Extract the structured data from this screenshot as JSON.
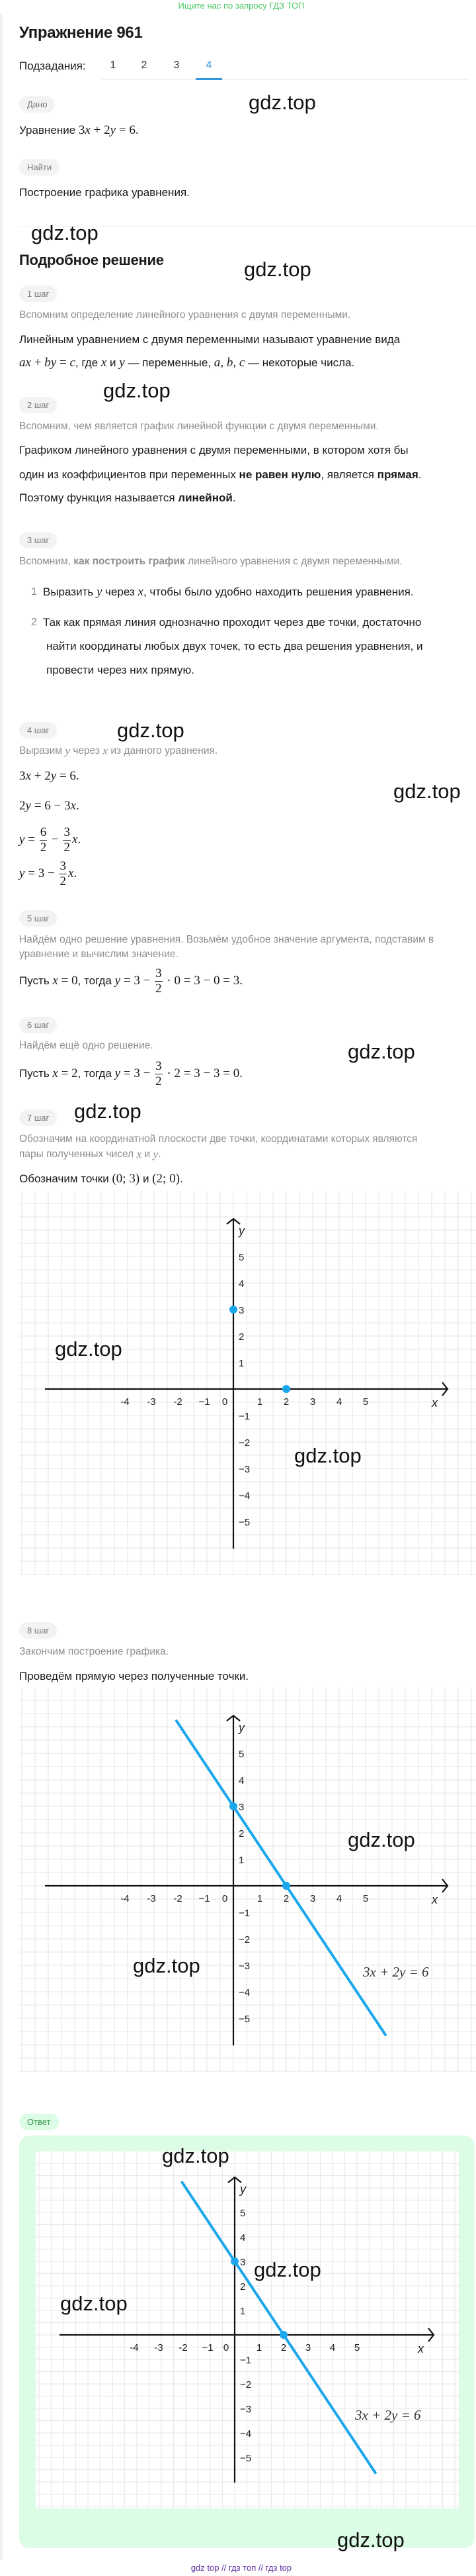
{
  "banner": "Ищите нас по запросу ГДЗ ТОП",
  "title": "Упражнение 961",
  "subtasks": {
    "label": "Подзадания:",
    "tabs": [
      "1",
      "2",
      "3",
      "4"
    ],
    "active": "4"
  },
  "given": {
    "label": "Дано",
    "text": [
      [
        "n",
        "Уравнение "
      ],
      [
        "m",
        "3"
      ],
      [
        "i",
        "x"
      ],
      [
        "m",
        " + 2"
      ],
      [
        "i",
        "y"
      ],
      [
        "m",
        " = 6."
      ]
    ]
  },
  "find": {
    "label": "Найти",
    "text": [
      [
        "n",
        "Построение графика уравнения."
      ]
    ]
  },
  "solution_heading": "Подробное решение",
  "steps": [
    {
      "label": "1 шаг",
      "hint": [
        [
          [
            "n",
            "Вспомним определение линейного уравнения с двумя переменными."
          ]
        ]
      ],
      "body": [
        [
          [
            "n",
            "Линейным уравнением с двумя переменными называют уравнение вида"
          ]
        ],
        [
          [
            "i",
            "ax"
          ],
          [
            "m",
            " + "
          ],
          [
            "i",
            "by"
          ],
          [
            "m",
            " = "
          ],
          [
            "i",
            "c"
          ],
          [
            "n",
            ", где "
          ],
          [
            "i",
            "x"
          ],
          [
            "n",
            " и "
          ],
          [
            "i",
            "y"
          ],
          [
            "n",
            " — переменные, "
          ],
          [
            "i",
            "a"
          ],
          [
            "m",
            ", "
          ],
          [
            "i",
            "b"
          ],
          [
            "m",
            ", "
          ],
          [
            "i",
            "c"
          ],
          [
            "n",
            " — некоторые числа."
          ]
        ]
      ]
    },
    {
      "label": "2 шаг",
      "hint": [
        [
          [
            "n",
            "Вспомним, чем является график линейной функции с двумя переменными."
          ]
        ]
      ],
      "body": [
        [
          [
            "n",
            "Графиком линейного уравнения с двумя переменными, в котором хотя бы"
          ]
        ],
        [
          [
            "n",
            "один из коэффициентов при переменных "
          ],
          [
            "b",
            "не равен нулю"
          ],
          [
            "n",
            ", является "
          ],
          [
            "b",
            "прямая"
          ],
          [
            "n",
            "."
          ]
        ],
        [
          [
            "n",
            "Поэтому функция называется "
          ],
          [
            "b",
            "линейной"
          ],
          [
            "n",
            "."
          ]
        ]
      ]
    },
    {
      "label": "3 шаг",
      "hint": [
        [
          [
            "n",
            "Вспомним, "
          ],
          [
            "b",
            "как построить график"
          ],
          [
            "n",
            " линейного уравнения с двумя переменными."
          ]
        ]
      ],
      "list": [
        {
          "num": "1",
          "lines": [
            [
              [
                "n",
                "Выразить "
              ],
              [
                "i",
                "y"
              ],
              [
                "n",
                " через "
              ],
              [
                "i",
                "x"
              ],
              [
                "n",
                ", чтобы было удобно находить решения уравнения."
              ]
            ]
          ]
        },
        {
          "num": "2",
          "lines": [
            [
              [
                "n",
                "Так как прямая линия однозначно проходит через две точки, достаточно"
              ]
            ],
            [
              [
                "n",
                "найти координаты любых двух точек, то есть два решения уравнения, и"
              ]
            ],
            [
              [
                "n",
                "провести через них прямую."
              ]
            ]
          ]
        }
      ]
    },
    {
      "label": "4 шаг",
      "hint": [
        [
          [
            "n",
            "Выразим "
          ],
          [
            "i",
            "y"
          ],
          [
            "n",
            " через "
          ],
          [
            "i",
            "x"
          ],
          [
            "n",
            " из данного уравнения."
          ]
        ]
      ],
      "body": [
        [
          [
            "m",
            "3"
          ],
          [
            "i",
            "x"
          ],
          [
            "m",
            " + 2"
          ],
          [
            "i",
            "y"
          ],
          [
            "m",
            " = 6."
          ]
        ],
        [
          [
            "m",
            "2"
          ],
          [
            "i",
            "y"
          ],
          [
            "m",
            " = 6 − 3"
          ],
          [
            "i",
            "x"
          ],
          [
            "m",
            "."
          ]
        ],
        [
          [
            "i",
            "y"
          ],
          [
            "m",
            " = "
          ],
          [
            "f",
            "6",
            "2"
          ],
          [
            "m",
            " − "
          ],
          [
            "f",
            "3",
            "2"
          ],
          [
            "i",
            "x"
          ],
          [
            "m",
            "."
          ]
        ],
        [
          [
            "i",
            "y"
          ],
          [
            "m",
            " = 3 − "
          ],
          [
            "f",
            "3",
            "2"
          ],
          [
            "i",
            "x"
          ],
          [
            "m",
            "."
          ]
        ]
      ]
    },
    {
      "label": "5 шаг",
      "hint": [
        [
          [
            "n",
            "Найдём одно решение уравнения. Возьмём удобное значение аргумента, подставим в"
          ]
        ],
        [
          [
            "n",
            "уравнение и вычислим значение."
          ]
        ]
      ],
      "body": [
        [
          [
            "n",
            "Пусть "
          ],
          [
            "i",
            "x"
          ],
          [
            "m",
            " = 0"
          ],
          [
            "n",
            ", тогда "
          ],
          [
            "i",
            "y"
          ],
          [
            "m",
            " = 3 − "
          ],
          [
            "f",
            "3",
            "2"
          ],
          [
            "m",
            " · 0 = 3 − 0 = 3."
          ]
        ]
      ]
    },
    {
      "label": "6 шаг",
      "hint": [
        [
          [
            "n",
            "Найдём ещё одно решение."
          ]
        ]
      ],
      "body": [
        [
          [
            "n",
            "Пусть "
          ],
          [
            "i",
            "x"
          ],
          [
            "m",
            " = 2"
          ],
          [
            "n",
            ", тогда "
          ],
          [
            "i",
            "y"
          ],
          [
            "m",
            " = 3 − "
          ],
          [
            "f",
            "3",
            "2"
          ],
          [
            "m",
            " · 2 = 3 − 3 = 0."
          ]
        ]
      ]
    },
    {
      "label": "7 шаг",
      "hint": [
        [
          [
            "n",
            "Обозначим на координатной плоскости две точки, координатами которых являются"
          ]
        ],
        [
          [
            "n",
            "пары полученных чисел "
          ],
          [
            "i",
            "x"
          ],
          [
            "n",
            " и "
          ],
          [
            "i",
            "y"
          ],
          [
            "n",
            "."
          ]
        ]
      ],
      "body": [
        [
          [
            "n",
            "Обозначим точки "
          ],
          [
            "m",
            "(0; 3)"
          ],
          [
            "n",
            " и "
          ],
          [
            "m",
            "(2; 0)"
          ],
          [
            "n",
            "."
          ]
        ]
      ]
    },
    {
      "label": "8 шаг",
      "hint": [
        [
          [
            "n",
            "Закончим построение графика."
          ]
        ]
      ],
      "body": [
        [
          [
            "n",
            "Проведём прямую через полученные точки."
          ]
        ]
      ]
    }
  ],
  "answer_label": "Ответ",
  "watermark": "gdz.top",
  "footer": "gdz top  //  гдз топ  //  гдз top",
  "colors": {
    "accent": "#3397db",
    "graph_line": "#1aa7ec",
    "answer_bg": "#dcfce6",
    "banner": "#4cc764",
    "footer": "#5b2d9e"
  },
  "chart_data": [
    {
      "type": "scatter",
      "x_axis_label": "x",
      "y_axis_label": "y",
      "x_ticks": [
        -4,
        -3,
        -2,
        -1,
        0,
        1,
        2,
        3,
        4,
        5
      ],
      "x_tick_labels": [
        "-4",
        "-3",
        "-2",
        "−1",
        "0",
        "1",
        "2",
        "3",
        "4",
        "5"
      ],
      "y_ticks": [
        5,
        4,
        3,
        2,
        1,
        -1,
        -2,
        -3,
        -4,
        -5
      ],
      "y_tick_labels": [
        "5",
        "4",
        "3",
        "2",
        "1",
        "−1",
        "−2",
        "−3",
        "−4",
        "−5"
      ],
      "points": [
        [
          0,
          3
        ],
        [
          2,
          0
        ]
      ],
      "grid": true
    },
    {
      "type": "line",
      "x_axis_label": "x",
      "y_axis_label": "y",
      "x_ticks": [
        -4,
        -3,
        -2,
        -1,
        0,
        1,
        2,
        3,
        4,
        5
      ],
      "x_tick_labels": [
        "-4",
        "-3",
        "-2",
        "−1",
        "0",
        "1",
        "2",
        "3",
        "4",
        "5"
      ],
      "y_ticks": [
        5,
        4,
        3,
        2,
        1,
        -1,
        -2,
        -3,
        -4,
        -5
      ],
      "y_tick_labels": [
        "5",
        "4",
        "3",
        "2",
        "1",
        "−1",
        "−2",
        "−3",
        "−4",
        "−5"
      ],
      "points": [
        [
          0,
          3
        ],
        [
          2,
          0
        ]
      ],
      "line": {
        "slope": -1.5,
        "intercept": 3,
        "x_range": [
          -2.15,
          5.75
        ],
        "label": "3x + 2y = 6"
      },
      "grid": true
    },
    {
      "type": "line",
      "x_axis_label": "x",
      "y_axis_label": "y",
      "x_ticks": [
        -4,
        -3,
        -2,
        -1,
        0,
        1,
        2,
        3,
        4,
        5
      ],
      "x_tick_labels": [
        "-4",
        "-3",
        "-2",
        "−1",
        "0",
        "1",
        "2",
        "3",
        "4",
        "5"
      ],
      "y_ticks": [
        5,
        4,
        3,
        2,
        1,
        -1,
        -2,
        -3,
        -4,
        -5
      ],
      "y_tick_labels": [
        "5",
        "4",
        "3",
        "2",
        "1",
        "−1",
        "−2",
        "−3",
        "−4",
        "−5"
      ],
      "points": [
        [
          0,
          3
        ],
        [
          2,
          0
        ]
      ],
      "line": {
        "slope": -1.5,
        "intercept": 3,
        "x_range": [
          -2.15,
          5.75
        ],
        "label": "3x + 2y = 6"
      },
      "grid": true
    }
  ]
}
